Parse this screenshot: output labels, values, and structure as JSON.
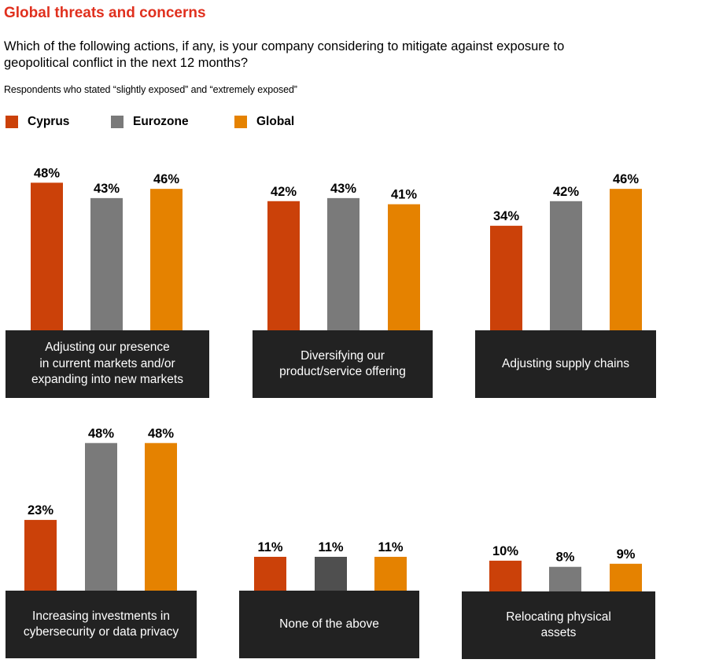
{
  "title": "Global threats and concerns",
  "question": "Which of the following actions, if any, is your company considering to mitigate against exposure to geopolitical conflict in the next 12 months?",
  "subtitle": "Respondents who stated “slightly exposed” and “extremely exposed”",
  "colors": {
    "cyprus": "#cb4109",
    "eurozone": "#7a7a7a",
    "global": "#e58200",
    "eurozone_alt": "#4f4f4f",
    "label_box": "#222222"
  },
  "legend": [
    {
      "label": "Cyprus",
      "color": "#cb4109"
    },
    {
      "label": "Eurozone",
      "color": "#7a7a7a"
    },
    {
      "label": "Global",
      "color": "#e58200"
    }
  ],
  "chart_data": {
    "type": "bar",
    "series": [
      "Cyprus",
      "Eurozone",
      "Global"
    ],
    "panels": [
      {
        "category": "Adjusting our presence\nin current markets and/or\nexpanding into new markets",
        "values": [
          48,
          43,
          46
        ],
        "labels": [
          "48%",
          "43%",
          "46%"
        ]
      },
      {
        "category": "Diversifying our\nproduct/service offering",
        "values": [
          42,
          43,
          41
        ],
        "labels": [
          "42%",
          "43%",
          "41%"
        ]
      },
      {
        "category": "Adjusting supply chains",
        "values": [
          34,
          42,
          46
        ],
        "labels": [
          "34%",
          "42%",
          "46%"
        ]
      },
      {
        "category": "Increasing investments in\ncybersecurity or data privacy",
        "values": [
          23,
          48,
          48
        ],
        "labels": [
          "23%",
          "48%",
          "48%"
        ]
      },
      {
        "category": "None of the above",
        "values": [
          11,
          11,
          11
        ],
        "labels": [
          "11%",
          "11%",
          "11%"
        ]
      },
      {
        "category": "Relocating physical\nassets",
        "values": [
          10,
          8,
          9
        ],
        "labels": [
          "10%",
          "8%",
          "9%"
        ]
      }
    ]
  }
}
